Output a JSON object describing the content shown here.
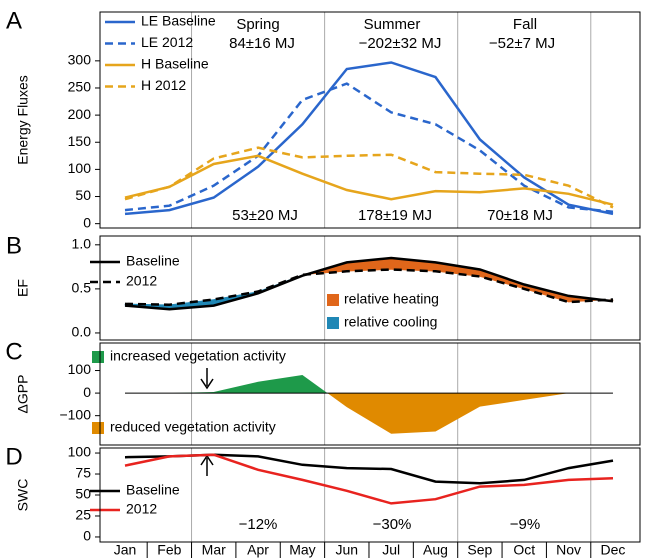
{
  "chart_data": [
    {
      "type": "line",
      "panel": "A",
      "y_label": "Energy Fluxes",
      "ylim": [
        -8,
        390
      ],
      "yticks": [
        0,
        50,
        100,
        150,
        200,
        250,
        300
      ],
      "series": [
        {
          "name": "LE Baseline",
          "color": "#2a66cc",
          "dash": false,
          "values": [
            18,
            25,
            48,
            105,
            183,
            285,
            297,
            270,
            155,
            85,
            35,
            18
          ]
        },
        {
          "name": "LE 2012",
          "color": "#2a66cc",
          "dash": true,
          "values": [
            25,
            33,
            70,
            125,
            228,
            258,
            205,
            183,
            135,
            70,
            30,
            22
          ]
        },
        {
          "name": "H Baseline",
          "color": "#e6a51c",
          "dash": false,
          "values": [
            48,
            68,
            110,
            125,
            92,
            62,
            45,
            60,
            58,
            65,
            55,
            35
          ]
        },
        {
          "name": "H 2012",
          "color": "#e6a51c",
          "dash": true,
          "values": [
            45,
            68,
            120,
            140,
            122,
            125,
            127,
            95,
            92,
            90,
            70,
            30
          ]
        }
      ],
      "annotations": [
        {
          "color": "#000000",
          "texts": [
            "Spring",
            "Summer",
            "Fall"
          ]
        },
        {
          "color": "#2a66cc",
          "texts": [
            "84±16 MJ",
            "−202±32 MJ",
            "−52±7 MJ"
          ]
        },
        {
          "color": "#e6a51c",
          "texts": [
            "53±20 MJ",
            "178±19 MJ",
            "70±18 MJ"
          ]
        }
      ]
    },
    {
      "type": "line",
      "panel": "B",
      "y_label": "EF",
      "ylim": [
        -0.08,
        1.1
      ],
      "yticks": [
        {
          "value": 0,
          "label": "0.0"
        },
        0.5,
        {
          "value": 1,
          "label": "1.0"
        }
      ],
      "series": [
        {
          "name": "Baseline",
          "color": "#000000",
          "dash": false,
          "values": [
            0.31,
            0.27,
            0.31,
            0.45,
            0.65,
            0.8,
            0.85,
            0.8,
            0.72,
            0.55,
            0.42,
            0.36
          ]
        },
        {
          "name": "2012",
          "color": "#000000",
          "dash": true,
          "values": [
            0.33,
            0.32,
            0.38,
            0.47,
            0.66,
            0.7,
            0.72,
            0.7,
            0.64,
            0.5,
            0.35,
            0.38
          ]
        }
      ],
      "fill_legend": [
        {
          "name": "relative heating",
          "color": "#e0661a"
        },
        {
          "name": "relative cooling",
          "color": "#1f87b5"
        }
      ]
    },
    {
      "type": "area",
      "panel": "C",
      "y_label": "ΔGPP",
      "ylim": [
        -230,
        222
      ],
      "yticks": [
        {
          "value": -100,
          "label": "−100"
        },
        0,
        100
      ],
      "values": [
        0,
        0,
        5,
        50,
        80,
        -62,
        -180,
        -170,
        -60,
        -30,
        0,
        0
      ],
      "legend": [
        {
          "name": "increased vegetation activity",
          "color": "#1e9a4a"
        },
        {
          "name": "reduced vegetation activity",
          "color": "#e08a00"
        }
      ]
    },
    {
      "type": "line",
      "panel": "D",
      "y_label": "SWC",
      "ylim": [
        -6,
        106
      ],
      "yticks": [
        0,
        25,
        50,
        75,
        100
      ],
      "categories": [
        "Jan",
        "Feb",
        "Mar",
        "Apr",
        "May",
        "Jun",
        "Jul",
        "Aug",
        "Sep",
        "Oct",
        "Nov",
        "Dec"
      ],
      "series": [
        {
          "name": "Baseline",
          "color": "#000000",
          "dash": false,
          "values": [
            95,
            96,
            98,
            96,
            86,
            82,
            81,
            66,
            64,
            68,
            82,
            91
          ]
        },
        {
          "name": "2012",
          "color": "#e8231f",
          "dash": false,
          "values": [
            85,
            96,
            98,
            80,
            68,
            55,
            40,
            45,
            60,
            62,
            68,
            70
          ]
        }
      ],
      "annotations": [
        {
          "color": "#000000",
          "texts": [
            "−12%",
            "−30%",
            "−9%"
          ]
        }
      ]
    }
  ]
}
